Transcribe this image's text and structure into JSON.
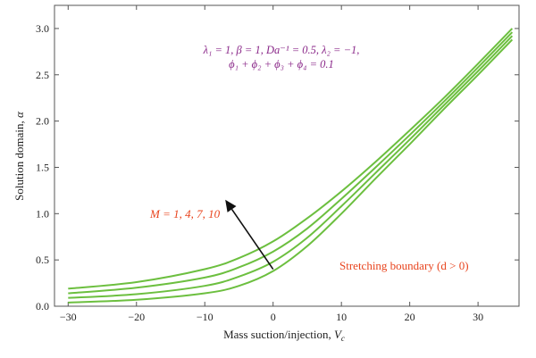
{
  "chart_data": {
    "type": "line",
    "xlabel": "Mass suction/injection, V_c",
    "ylabel": "Solution domain, α",
    "xlim": [
      -32,
      36
    ],
    "ylim": [
      0,
      3.25
    ],
    "xticks": [
      -30,
      -20,
      -10,
      0,
      10,
      20,
      30
    ],
    "yticks": [
      0.0,
      0.5,
      1.0,
      1.5,
      2.0,
      2.5,
      3.0
    ],
    "xtick_labels": [
      "−30",
      "−20",
      "−10",
      "0",
      "10",
      "20",
      "30"
    ],
    "ytick_labels": [
      "0.0",
      "0.5",
      "1.0",
      "1.5",
      "2.0",
      "2.5",
      "3.0"
    ],
    "grid": false,
    "line_color": "#6cbf3f",
    "series": [
      {
        "x": [
          -30,
          -20,
          -10,
          -5,
          0,
          5,
          10,
          15,
          20,
          25,
          30,
          35
        ],
        "y": [
          0.19,
          0.26,
          0.4,
          0.52,
          0.7,
          0.95,
          1.24,
          1.56,
          1.9,
          2.25,
          2.62,
          3.0
        ]
      },
      {
        "x": [
          -30,
          -20,
          -10,
          -5,
          0,
          5,
          10,
          15,
          20,
          25,
          30,
          35
        ],
        "y": [
          0.14,
          0.2,
          0.31,
          0.42,
          0.59,
          0.84,
          1.16,
          1.5,
          1.85,
          2.21,
          2.58,
          2.96
        ]
      },
      {
        "x": [
          -30,
          -20,
          -10,
          -5,
          0,
          5,
          10,
          15,
          20,
          25,
          30,
          35
        ],
        "y": [
          0.09,
          0.13,
          0.22,
          0.32,
          0.48,
          0.74,
          1.08,
          1.44,
          1.8,
          2.17,
          2.54,
          2.92
        ]
      },
      {
        "x": [
          -30,
          -20,
          -10,
          -5,
          0,
          5,
          10,
          15,
          20,
          25,
          30,
          35
        ],
        "y": [
          0.04,
          0.07,
          0.14,
          0.22,
          0.38,
          0.65,
          1.0,
          1.38,
          1.75,
          2.13,
          2.5,
          2.88
        ]
      }
    ],
    "annotations": {
      "params_line1": "λ₁ = 1, β = 1, Da⁻¹ = 0.5, λ₂ = −1,",
      "params_line2": "ϕ₁ + ϕ₂ + ϕ₃ + ϕ₄ = 0.1",
      "m_label": "M = 1, 4, 7, 10",
      "boundary_label": "Stretching boundary (d > 0)"
    },
    "arrow": {
      "from": [
        0,
        0.4
      ],
      "to": [
        -7,
        1.15
      ]
    }
  }
}
